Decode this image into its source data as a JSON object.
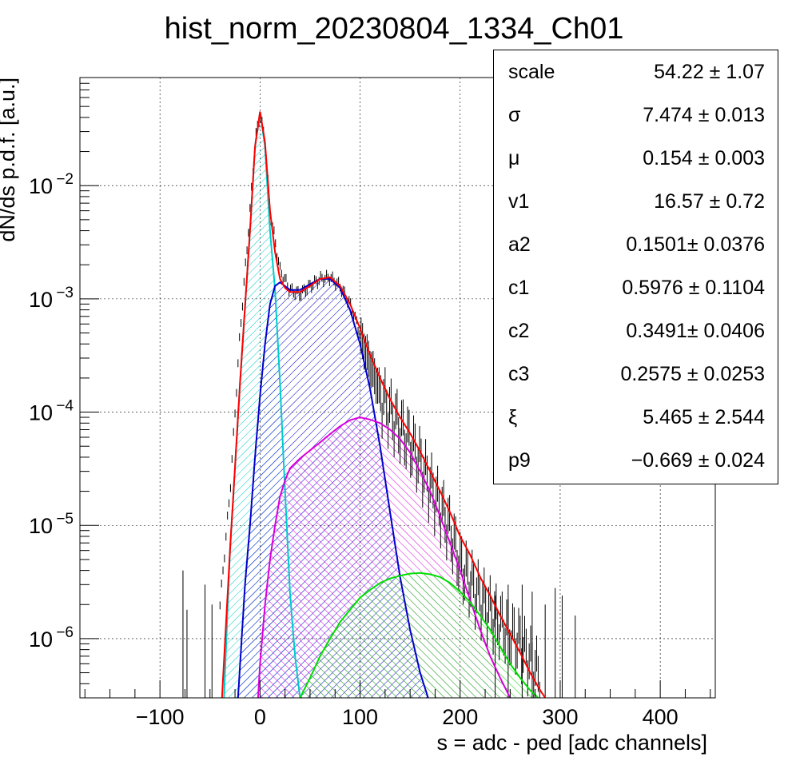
{
  "chart_data": {
    "type": "histogram",
    "title": "hist_norm_20230804_1334_Ch01",
    "xlabel": "s = adc - ped [adc channels]",
    "ylabel": "dN/ds p.d.f. [a.u.]",
    "xlim": [
      -180,
      455
    ],
    "ylim": [
      3e-07,
      0.09
    ],
    "y_scale": "log",
    "grid": true,
    "x_ticks": [
      -100,
      0,
      100,
      200,
      300,
      400
    ],
    "y_ticks": [
      {
        "value": 1e-06,
        "base": "10",
        "exp": "−6"
      },
      {
        "value": 1e-05,
        "base": "10",
        "exp": "−5"
      },
      {
        "value": 0.0001,
        "base": "10",
        "exp": "−4"
      },
      {
        "value": 0.001,
        "base": "10",
        "exp": "−3"
      },
      {
        "value": 0.01,
        "base": "10",
        "exp": "−2"
      }
    ],
    "series": [
      {
        "color": "#000000",
        "style": "histogram",
        "x": [
          -40,
          -30,
          -20,
          -10,
          -5,
          0,
          5,
          10,
          20,
          30,
          40,
          50,
          60,
          70,
          80,
          90,
          100,
          110,
          120,
          130,
          140,
          150,
          160,
          170,
          180,
          190,
          200,
          220,
          240,
          260,
          280
        ],
        "y": [
          2e-06,
          2e-05,
          0.0005,
          0.006,
          0.025,
          0.043,
          0.025,
          0.006,
          0.0018,
          0.0012,
          0.0011,
          0.0013,
          0.0015,
          0.00155,
          0.0013,
          0.0009,
          0.0005,
          0.00028,
          0.00016,
          0.00011,
          8e-05,
          6e-05,
          4e-05,
          2.5e-05,
          1.6e-05,
          1e-05,
          5e-06,
          2.5e-06,
          1.5e-06,
          1e-06,
          5e-07
        ]
      },
      {
        "color": "#ff0000",
        "style": "line",
        "x": [
          -38,
          -30,
          -20,
          -10,
          -5,
          0,
          5,
          10,
          15,
          20,
          25,
          30,
          40,
          50,
          60,
          70,
          80,
          90,
          100,
          110,
          120,
          130,
          140,
          150,
          160,
          170,
          180,
          190,
          200,
          210,
          220,
          230,
          240,
          250,
          260,
          270,
          280,
          285
        ],
        "y": [
          3e-07,
          6e-06,
          0.00018,
          0.004,
          0.022,
          0.045,
          0.024,
          0.006,
          0.0026,
          0.0015,
          0.00125,
          0.00115,
          0.00115,
          0.0013,
          0.0015,
          0.00155,
          0.0013,
          0.0009,
          0.00055,
          0.00032,
          0.0002,
          0.00013,
          9e-05,
          6.5e-05,
          4.5e-05,
          3e-05,
          2e-05,
          1.3e-05,
          8e-06,
          5.5e-06,
          3.5e-06,
          2.4e-06,
          1.6e-06,
          1.1e-06,
          7.5e-07,
          5e-07,
          3.5e-07,
          3e-07
        ]
      },
      {
        "color": "#00cccc",
        "style": "filled-hatched",
        "x": [
          -36,
          -30,
          -20,
          -10,
          -5,
          0,
          5,
          10,
          15,
          20,
          25,
          30,
          35,
          40
        ],
        "y": [
          3e-07,
          6e-06,
          0.00018,
          0.004,
          0.022,
          0.045,
          0.022,
          0.004,
          0.0012,
          0.00018,
          2e-05,
          2.5e-06,
          7e-07,
          3e-07
        ]
      },
      {
        "color": "#0000cc",
        "style": "filled-hatched",
        "x": [
          -22,
          -15,
          -10,
          -5,
          0,
          5,
          10,
          15,
          20,
          30,
          40,
          50,
          60,
          70,
          80,
          90,
          100,
          110,
          120,
          130,
          140,
          150,
          160,
          168
        ],
        "y": [
          3e-07,
          3e-06,
          1e-05,
          4e-05,
          0.00014,
          0.0004,
          0.0009,
          0.0013,
          0.0014,
          0.0012,
          0.0012,
          0.00135,
          0.0015,
          0.0015,
          0.00125,
          0.0008,
          0.0004,
          0.00016,
          5e-05,
          1.3e-05,
          3.5e-06,
          1.2e-06,
          5e-07,
          3e-07
        ]
      },
      {
        "color": "#dd00dd",
        "style": "filled-hatched",
        "x": [
          -2,
          0,
          5,
          10,
          15,
          20,
          25,
          30,
          40,
          50,
          60,
          70,
          80,
          90,
          100,
          110,
          120,
          130,
          140,
          150,
          160,
          170,
          180,
          190,
          200,
          210,
          220,
          230,
          240,
          250
        ],
        "y": [
          3e-07,
          6e-07,
          2e-06,
          5e-06,
          1e-05,
          1.8e-05,
          2.5e-05,
          3.2e-05,
          3.9e-05,
          4.6e-05,
          5.4e-05,
          6.4e-05,
          7.5e-05,
          8.5e-05,
          9e-05,
          8.6e-05,
          8e-05,
          7e-05,
          5.8e-05,
          4.4e-05,
          3e-05,
          2e-05,
          1.2e-05,
          7e-06,
          4e-06,
          2.2e-06,
          1.2e-06,
          7e-07,
          4.5e-07,
          3e-07
        ]
      },
      {
        "color": "#00dd00",
        "style": "filled-hatched",
        "x": [
          40,
          50,
          60,
          70,
          80,
          90,
          100,
          110,
          120,
          130,
          140,
          150,
          160,
          170,
          180,
          190,
          200,
          210,
          220,
          230,
          240,
          250,
          260,
          270,
          278
        ],
        "y": [
          3e-07,
          4.5e-07,
          7e-07,
          1e-06,
          1.4e-06,
          1.8e-06,
          2.3e-06,
          2.7e-06,
          3.1e-06,
          3.4e-06,
          3.6e-06,
          3.75e-06,
          3.8e-06,
          3.7e-06,
          3.5e-06,
          3.1e-06,
          2.6e-06,
          2.1e-06,
          1.6e-06,
          1.2e-06,
          8.5e-07,
          6e-07,
          4.5e-07,
          3.5e-07,
          3e-07
        ]
      }
    ]
  },
  "stats_box": {
    "rows": [
      {
        "name": "scale",
        "value": "54.22 ± 1.07"
      },
      {
        "name": "σ",
        "value": "7.474 ± 0.013"
      },
      {
        "name": "μ",
        "value": "0.154 ± 0.003"
      },
      {
        "name": "v1",
        "value": "16.57 ± 0.72"
      },
      {
        "name": "a2",
        "value": "0.1501± 0.0376"
      },
      {
        "name": "c1",
        "value": "0.5976 ± 0.1104"
      },
      {
        "name": "c2",
        "value": "0.3491± 0.0406"
      },
      {
        "name": "c3",
        "value": "0.2575 ± 0.0253"
      },
      {
        "name": "ξ",
        "value": "5.465 ± 2.544"
      },
      {
        "name": "p9",
        "value": "−0.669 ± 0.024"
      }
    ]
  }
}
